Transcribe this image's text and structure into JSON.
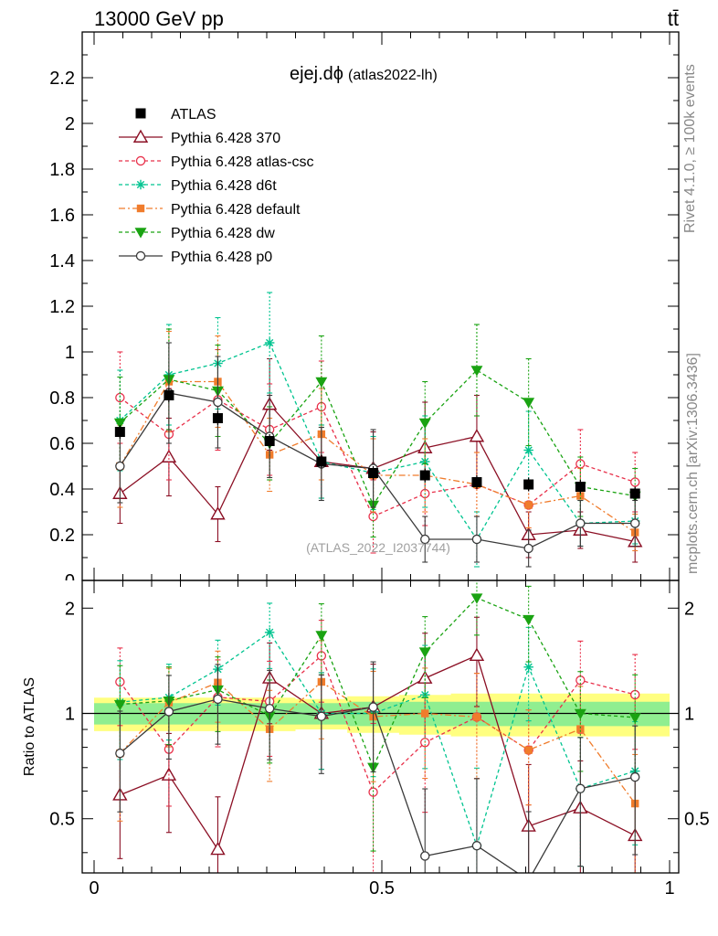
{
  "header": {
    "left": "13000 GeV pp",
    "right": "tt̄"
  },
  "side_text": {
    "rivet": "Rivet 4.1.0, ≥ 100k events",
    "mcplots": "mcplots.cern.ch [arXiv:1306.3436]"
  },
  "chart_data": {
    "type": "line",
    "title": "ejej.dϕ",
    "title_suffix": "(atlas2022-lh)",
    "watermark": "(ATLAS_2022_I2037744)",
    "xlabel": "",
    "ylabel_main": "",
    "ylabel_ratio": "Ratio to ATLAS",
    "xlim": [
      0,
      1
    ],
    "ylim_main": [
      0,
      2.4
    ],
    "ylim_ratio": [
      0.35,
      2.4
    ],
    "x_ticks": [
      "0",
      "0.5",
      "1"
    ],
    "y_ticks_main": [
      "0.2",
      "0.4",
      "0.6",
      "0.8",
      "1",
      "1.2",
      "1.4",
      "1.6",
      "1.8",
      "2",
      "2.2"
    ],
    "y_tick_zero_label": "0",
    "y_ticks_ratio": [
      "0.5",
      "1",
      "2"
    ],
    "x": [
      0.045,
      0.13,
      0.215,
      0.305,
      0.395,
      0.485,
      0.575,
      0.665,
      0.755,
      0.845,
      0.94
    ],
    "data": {
      "name": "ATLAS",
      "values": [
        0.65,
        0.81,
        0.71,
        0.61,
        0.52,
        0.47,
        0.46,
        0.43,
        0.42,
        0.41,
        0.38
      ],
      "err": [
        0.03,
        0.03,
        0.03,
        0.03,
        0.03,
        0.03,
        0.03,
        0.03,
        0.03,
        0.03,
        0.03
      ]
    },
    "band_ratio": {
      "inner": [
        0.07,
        0.07,
        0.07,
        0.07,
        0.07,
        0.08,
        0.08,
        0.08,
        0.08,
        0.08,
        0.08
      ],
      "outer": [
        0.11,
        0.11,
        0.11,
        0.11,
        0.1,
        0.12,
        0.13,
        0.14,
        0.14,
        0.14,
        0.14
      ]
    },
    "series": [
      {
        "name": "Pythia 6.428 370",
        "color": "#8b0f24",
        "dash": "",
        "marker": "tri-open",
        "values": [
          0.38,
          0.54,
          0.29,
          0.77,
          0.52,
          0.49,
          0.58,
          0.63,
          0.2,
          0.22,
          0.17
        ],
        "err": [
          0.13,
          0.17,
          0.12,
          0.2,
          0.16,
          0.16,
          0.2,
          0.18,
          0.1,
          0.08,
          0.09
        ]
      },
      {
        "name": "Pythia 6.428 atlas-csc",
        "color": "#e8304a",
        "dash": "4,3",
        "marker": "circle-open",
        "values": [
          0.8,
          0.64,
          0.79,
          0.66,
          0.76,
          0.28,
          0.38,
          0.42,
          0.33,
          0.51,
          0.43
        ],
        "err": [
          0.2,
          0.2,
          0.22,
          0.2,
          0.2,
          0.16,
          0.14,
          0.14,
          0.1,
          0.15,
          0.13
        ]
      },
      {
        "name": "Pythia 6.428 d6t",
        "color": "#00c490",
        "dash": "4,3",
        "marker": "star",
        "values": [
          0.7,
          0.9,
          0.95,
          1.04,
          0.52,
          0.47,
          0.52,
          0.18,
          0.57,
          0.25,
          0.26
        ],
        "err": [
          0.22,
          0.22,
          0.2,
          0.22,
          0.16,
          0.16,
          0.2,
          0.12,
          0.17,
          0.1,
          0.1
        ]
      },
      {
        "name": "Pythia 6.428 default",
        "color": "#f07c2c",
        "dash": "7,3,2,3",
        "marker": "square",
        "values": [
          0.5,
          0.87,
          0.87,
          0.55,
          0.64,
          0.46,
          0.46,
          0.42,
          0.33,
          0.37,
          0.21
        ],
        "err": [
          0.18,
          0.22,
          0.2,
          0.16,
          0.2,
          0.16,
          0.16,
          0.14,
          0.1,
          0.12,
          0.08
        ]
      },
      {
        "name": "Pythia 6.428 dw",
        "color": "#1aa312",
        "dash": "4,3",
        "marker": "tri-down",
        "values": [
          0.69,
          0.88,
          0.83,
          0.6,
          0.87,
          0.33,
          0.69,
          0.92,
          0.78,
          0.41,
          0.37
        ],
        "err": [
          0.2,
          0.22,
          0.2,
          0.16,
          0.2,
          0.14,
          0.18,
          0.2,
          0.19,
          0.13,
          0.12
        ]
      },
      {
        "name": "Pythia 6.428 p0",
        "color": "#3a3a3a",
        "dash": "",
        "marker": "circle-open",
        "values": [
          0.5,
          0.82,
          0.78,
          0.63,
          0.51,
          0.49,
          0.18,
          0.18,
          0.14,
          0.25,
          0.25
        ],
        "err": [
          0.16,
          0.22,
          0.2,
          0.18,
          0.16,
          0.17,
          0.1,
          0.1,
          0.08,
          0.1,
          0.1
        ]
      }
    ]
  }
}
